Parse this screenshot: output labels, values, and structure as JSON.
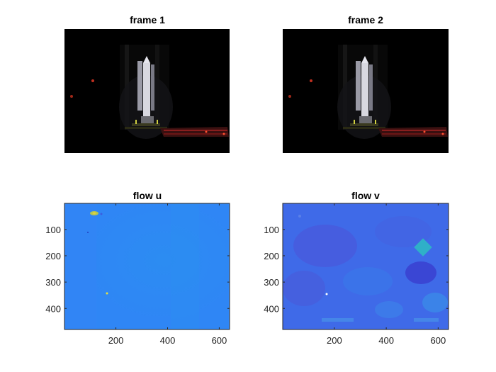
{
  "figure": {
    "subplots": [
      {
        "title": "frame 1"
      },
      {
        "title": "frame 2"
      },
      {
        "title": "flow u"
      },
      {
        "title": "flow v"
      }
    ]
  },
  "colors": {
    "frame_background": "#000000",
    "rocket": "#d8d8e0",
    "tower": "#1a1a1a",
    "ground_lights": "#8a1e1e",
    "flow_u_base": "#2f86f5",
    "flow_v_base": "#3f6ae8",
    "flow_v_dark": "#3a3fd0",
    "flow_v_teal": "#2fb0c8",
    "axis": "#262626"
  },
  "chart_data": [
    {
      "type": "heatmap",
      "title": "frame 1",
      "content": "image",
      "axes_visible": false
    },
    {
      "type": "heatmap",
      "title": "frame 2",
      "content": "image",
      "axes_visible": false
    },
    {
      "type": "heatmap",
      "title": "flow u",
      "xlim": [
        1,
        640
      ],
      "ylim": [
        1,
        480
      ],
      "y_reversed": true,
      "xticks": [
        200,
        400,
        600
      ],
      "yticks": [
        100,
        200,
        300,
        400
      ],
      "xtick_labels": [
        "200",
        "400",
        "600"
      ],
      "ytick_labels": [
        "100",
        "200",
        "300",
        "400"
      ]
    },
    {
      "type": "heatmap",
      "title": "flow v",
      "xlim": [
        1,
        640
      ],
      "ylim": [
        1,
        480
      ],
      "y_reversed": true,
      "xticks": [
        200,
        400,
        600
      ],
      "yticks": [
        100,
        200,
        300,
        400
      ],
      "xtick_labels": [
        "200",
        "400",
        "600"
      ],
      "ytick_labels": [
        "100",
        "200",
        "300",
        "400"
      ]
    }
  ]
}
